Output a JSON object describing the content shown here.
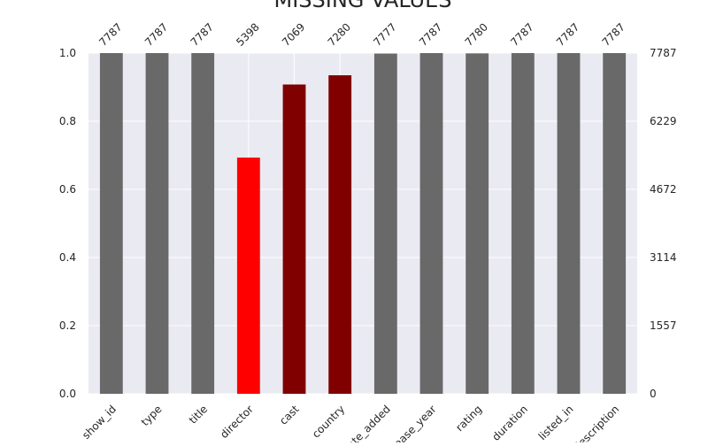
{
  "chart_data": {
    "type": "bar",
    "title": "MISSING VALUES",
    "categories": [
      "show_id",
      "type",
      "title",
      "director",
      "cast",
      "country",
      "date_added",
      "release_year",
      "rating",
      "duration",
      "listed_in",
      "description"
    ],
    "values": [
      1.0,
      1.0,
      1.0,
      0.6932,
      0.9078,
      0.9349,
      0.9987,
      1.0,
      0.9992,
      1.0,
      1.0,
      1.0
    ],
    "counts": [
      "7787",
      "7787",
      "7787",
      "5398",
      "7069",
      "7280",
      "7777",
      "7787",
      "7780",
      "7787",
      "7787",
      "7787"
    ],
    "bar_colors": [
      "#696969",
      "#696969",
      "#696969",
      "#ff0000",
      "#800000",
      "#800000",
      "#696969",
      "#696969",
      "#696969",
      "#696969",
      "#696969",
      "#696969"
    ],
    "ylim": [
      0,
      1
    ],
    "yticks": [
      "0.0",
      "0.2",
      "0.4",
      "0.6",
      "0.8",
      "1.0"
    ],
    "y2ticks": [
      "0",
      "1557",
      "3114",
      "4672",
      "6229",
      "7787"
    ],
    "grid": true,
    "background": "#eaeaf2"
  }
}
